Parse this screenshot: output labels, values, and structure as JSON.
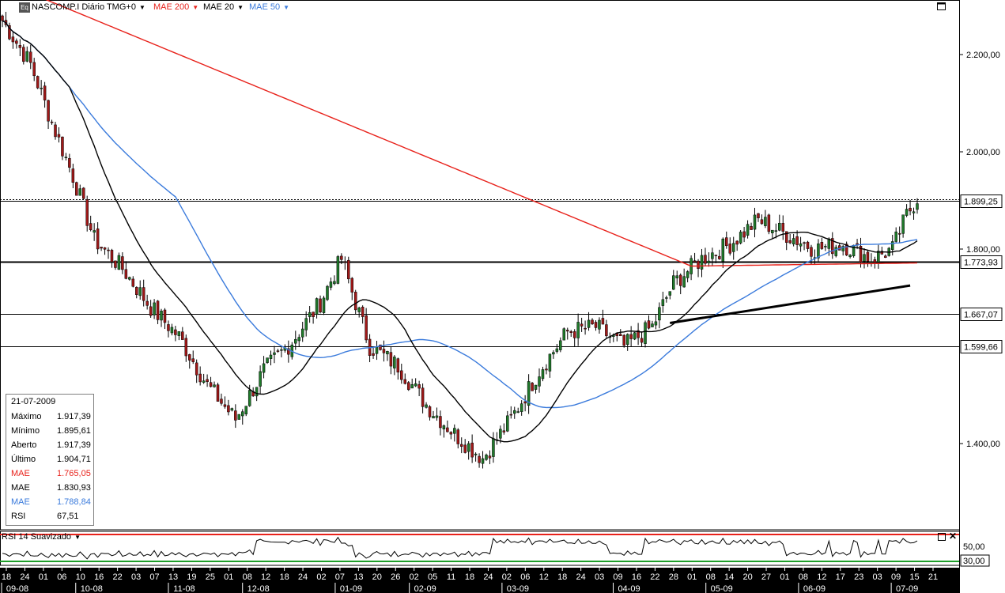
{
  "header": {
    "symbol_label": "NASCOMP.I Diário TMG+0",
    "logo_text": "Eq",
    "indicators": [
      {
        "label": "MAE 200",
        "color": "#e8221b"
      },
      {
        "label": "MAE 20",
        "color": "#000000"
      },
      {
        "label": "MAE 50",
        "color": "#3b7bdc"
      }
    ]
  },
  "info_panel": {
    "date": "21-07-2009",
    "rows": [
      {
        "label": "Máximo",
        "value": "1.917,39",
        "color": "#000000"
      },
      {
        "label": "Mínimo",
        "value": "1.895,61",
        "color": "#000000"
      },
      {
        "label": "Aberto",
        "value": "1.917,39",
        "color": "#000000"
      },
      {
        "label": "Último",
        "value": "1.904,71",
        "color": "#000000"
      },
      {
        "label": "MAE",
        "value": "1.765,05",
        "color": "#e8221b"
      },
      {
        "label": "MAE",
        "value": "1.830,93",
        "color": "#000000"
      },
      {
        "label": "MAE",
        "value": "1.788,84",
        "color": "#3b7bdc"
      },
      {
        "label": "RSI",
        "value": "67,51",
        "color": "#000000"
      }
    ]
  },
  "rsi_panel": {
    "label": "RSI 14 Suavizado",
    "levels": [
      {
        "text": "50,00",
        "value": 50
      },
      {
        "text": "30,00",
        "value": 30
      }
    ]
  },
  "chart_data": {
    "type": "candlestick",
    "y_ticks": [
      {
        "text": "2.200,00",
        "value": 2200
      },
      {
        "text": "2.000,00",
        "value": 2000
      },
      {
        "text": "1.800,00",
        "value": 1800
      },
      {
        "text": "1.400,00",
        "value": 1400
      }
    ],
    "horizontal_lines": [
      {
        "text": "1.899,25",
        "value": 1899.25,
        "style": "dotted-double"
      },
      {
        "text": "1.773,93",
        "value": 1773.93,
        "style": "thick"
      },
      {
        "text": "1.667,07",
        "value": 1667.07,
        "style": "thin"
      },
      {
        "text": "1.599,66",
        "value": 1599.66,
        "style": "thin"
      }
    ],
    "day_ticks": [
      "18",
      "24",
      "01",
      "06",
      "10",
      "16",
      "22",
      "03",
      "07",
      "13",
      "19",
      "25",
      "01",
      "08",
      "12",
      "18",
      "24",
      "02",
      "07",
      "13",
      "20",
      "26",
      "02",
      "05",
      "11",
      "18",
      "24",
      "02",
      "06",
      "12",
      "18",
      "24",
      "03",
      "09",
      "16",
      "22",
      "28",
      "01",
      "08",
      "14",
      "20",
      "27",
      "01",
      "08",
      "12",
      "17",
      "23",
      "03",
      "09",
      "15",
      "21"
    ],
    "month_ticks": [
      {
        "text": "09-08",
        "index": 0
      },
      {
        "text": "10-08",
        "index": 4
      },
      {
        "text": "11-08",
        "index": 9
      },
      {
        "text": "12-08",
        "index": 13
      },
      {
        "text": "01-09",
        "index": 18
      },
      {
        "text": "02-09",
        "index": 22
      },
      {
        "text": "03-09",
        "index": 27
      },
      {
        "text": "04-09",
        "index": 33
      },
      {
        "text": "05-09",
        "index": 38
      },
      {
        "text": "06-09",
        "index": 43
      },
      {
        "text": "07-09",
        "index": 48
      }
    ],
    "close_anchors": [
      [
        0,
        2270
      ],
      [
        8,
        2180
      ],
      [
        14,
        2060
      ],
      [
        20,
        1950
      ],
      [
        26,
        1820
      ],
      [
        34,
        1760
      ],
      [
        42,
        1680
      ],
      [
        50,
        1620
      ],
      [
        58,
        1520
      ],
      [
        66,
        1450
      ],
      [
        74,
        1550
      ],
      [
        82,
        1610
      ],
      [
        90,
        1690
      ],
      [
        96,
        1780
      ],
      [
        104,
        1600
      ],
      [
        112,
        1560
      ],
      [
        120,
        1480
      ],
      [
        128,
        1420
      ],
      [
        136,
        1370
      ],
      [
        144,
        1450
      ],
      [
        152,
        1550
      ],
      [
        160,
        1630
      ],
      [
        168,
        1640
      ],
      [
        176,
        1600
      ],
      [
        184,
        1640
      ],
      [
        190,
        1730
      ],
      [
        198,
        1780
      ],
      [
        206,
        1810
      ],
      [
        214,
        1860
      ],
      [
        222,
        1830
      ],
      [
        230,
        1800
      ],
      [
        238,
        1810
      ],
      [
        246,
        1780
      ],
      [
        252,
        1800
      ],
      [
        256,
        1870
      ],
      [
        259,
        1905
      ]
    ],
    "total_bars": 260,
    "trendline": {
      "start": [
        189,
        1648
      ],
      "end": [
        257,
        1725
      ]
    }
  }
}
